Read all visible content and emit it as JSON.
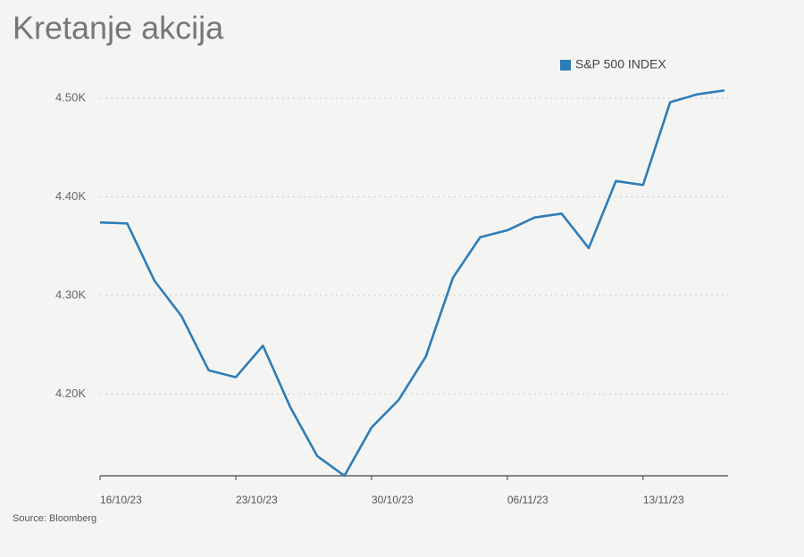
{
  "chart_data": {
    "type": "line",
    "title": "Kretanje akcija",
    "source": "Source: Bloomberg",
    "categories": [
      "16/10/23",
      null,
      null,
      null,
      null,
      "23/10/23",
      null,
      null,
      null,
      null,
      "30/10/23",
      null,
      null,
      null,
      null,
      "06/11/23",
      null,
      null,
      null,
      null,
      "13/11/23",
      null,
      null,
      null
    ],
    "series": [
      {
        "name": "S&P 500 INDEX",
        "color": "#2d7db8",
        "values": [
          4374,
          4373,
          4315,
          4279,
          4224,
          4217,
          4249,
          4187,
          4137,
          4117,
          4166,
          4194,
          4238,
          4318,
          4359,
          4366,
          4379,
          4383,
          4348,
          4416,
          4412,
          4496,
          4504,
          4508
        ]
      }
    ],
    "ylim": [
      4117,
      4520
    ],
    "yticks": [
      {
        "value": 4200,
        "label": "4.20K"
      },
      {
        "value": 4300,
        "label": "4.30K"
      },
      {
        "value": 4400,
        "label": "4.40K"
      },
      {
        "value": 4500,
        "label": "4.50K"
      }
    ],
    "grid": true,
    "legend": "top-right"
  }
}
